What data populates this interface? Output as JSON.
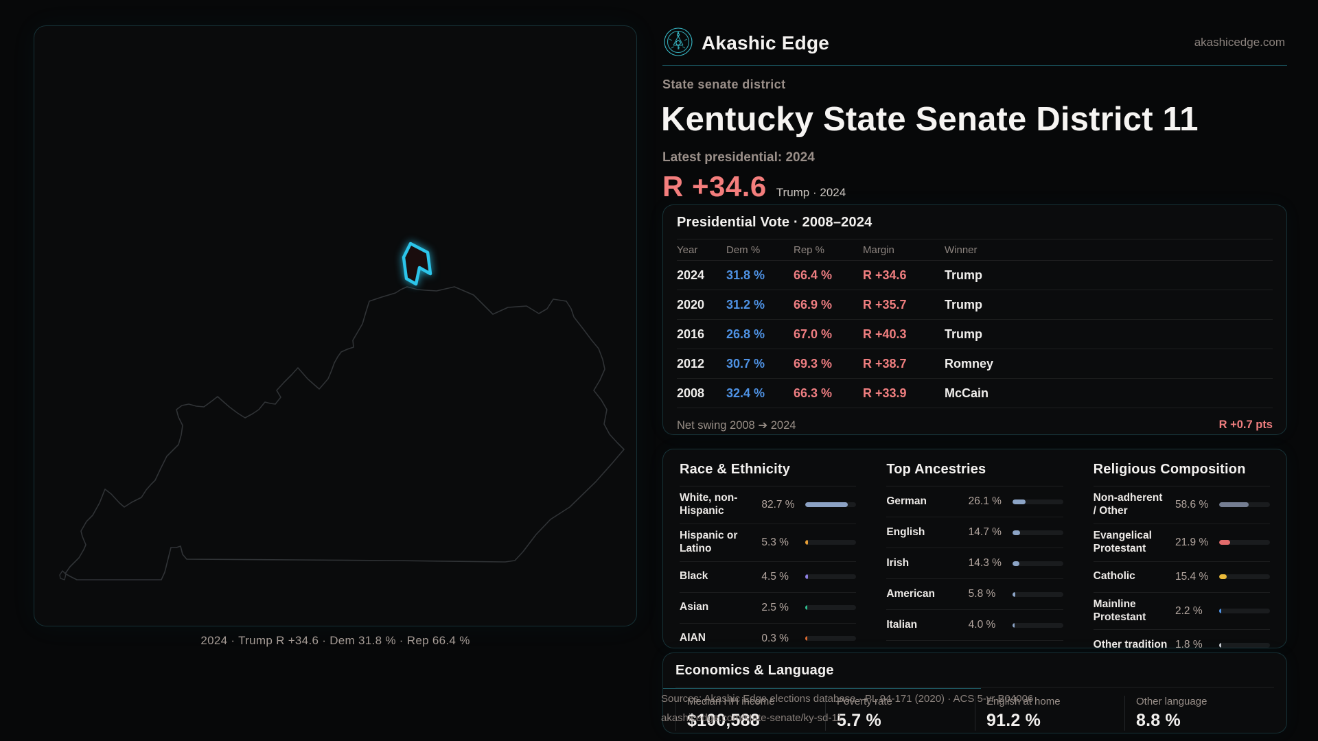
{
  "brand": {
    "name": "Akashic Edge",
    "site": "akashicedge.com"
  },
  "header": {
    "kicker": "State senate district",
    "title": "Kentucky State Senate District 11",
    "latest_label": "Latest presidential: 2024",
    "margin_big": "R +34.6",
    "margin_note": "Trump · 2024"
  },
  "map": {
    "caption": "2024 · Trump R +34.6 · Dem 31.8 % · Rep 66.4 %",
    "district_color": "#2cc5ea"
  },
  "presidential": {
    "title": "Presidential Vote · 2008–2024",
    "columns": [
      "Year",
      "Dem %",
      "Rep %",
      "Margin",
      "Winner"
    ],
    "rows": [
      {
        "year": "2024",
        "dem": "31.8 %",
        "rep": "66.4 %",
        "margin": "R +34.6",
        "winner": "Trump"
      },
      {
        "year": "2020",
        "dem": "31.2 %",
        "rep": "66.9 %",
        "margin": "R +35.7",
        "winner": "Trump"
      },
      {
        "year": "2016",
        "dem": "26.8 %",
        "rep": "67.0 %",
        "margin": "R +40.3",
        "winner": "Trump"
      },
      {
        "year": "2012",
        "dem": "30.7 %",
        "rep": "69.3 %",
        "margin": "R +38.7",
        "winner": "Romney"
      },
      {
        "year": "2008",
        "dem": "32.4 %",
        "rep": "66.3 %",
        "margin": "R +33.9",
        "winner": "McCain"
      }
    ],
    "net_swing_label": "Net swing 2008 ➔ 2024",
    "net_swing_value": "R +0.7 pts"
  },
  "demographics": {
    "race": {
      "title": "Race & Ethnicity",
      "rows": [
        {
          "label": "White, non-Hispanic",
          "value": "82.7 %",
          "pct": 82.7,
          "color": "#8ca2c4"
        },
        {
          "label": "Hispanic or Latino",
          "value": "5.3 %",
          "pct": 5.3,
          "color": "#e79f36"
        },
        {
          "label": "Black",
          "value": "4.5 %",
          "pct": 4.5,
          "color": "#8d7fe0"
        },
        {
          "label": "Asian",
          "value": "2.5 %",
          "pct": 2.5,
          "color": "#2fbe8f"
        },
        {
          "label": "AIAN",
          "value": "0.3 %",
          "pct": 0.3,
          "color": "#dd6a30"
        }
      ]
    },
    "ancestries": {
      "title": "Top Ancestries",
      "rows": [
        {
          "label": "German",
          "value": "26.1 %",
          "pct": 26.1,
          "color": "#8ca4c6"
        },
        {
          "label": "English",
          "value": "14.7 %",
          "pct": 14.7,
          "color": "#8ca4c6"
        },
        {
          "label": "Irish",
          "value": "14.3 %",
          "pct": 14.3,
          "color": "#8ca4c6"
        },
        {
          "label": "American",
          "value": "5.8 %",
          "pct": 5.8,
          "color": "#8ca4c6"
        },
        {
          "label": "Italian",
          "value": "4.0 %",
          "pct": 4.0,
          "color": "#8ca4c6"
        }
      ]
    },
    "religion": {
      "title": "Religious Composition",
      "rows": [
        {
          "label": "Non-adherent / Other",
          "value": "58.6 %",
          "pct": 58.6,
          "color": "#757e92"
        },
        {
          "label": "Evangelical Protestant",
          "value": "21.9 %",
          "pct": 21.9,
          "color": "#e26b6b"
        },
        {
          "label": "Catholic",
          "value": "15.4 %",
          "pct": 15.4,
          "color": "#eaba3a"
        },
        {
          "label": "Mainline Protestant",
          "value": "2.2 %",
          "pct": 2.2,
          "color": "#4f93e6"
        },
        {
          "label": "Other tradition",
          "value": "1.8 %",
          "pct": 1.8,
          "color": "#c7cad0"
        }
      ]
    }
  },
  "economics": {
    "title": "Economics & Language",
    "stats": [
      {
        "label": "Median HH income",
        "value": "$100,588"
      },
      {
        "label": "Poverty rate",
        "value": "5.7 %"
      },
      {
        "label": "English at home",
        "value": "91.2 %"
      },
      {
        "label": "Other language",
        "value": "8.8 %"
      }
    ]
  },
  "sources": {
    "line1": "Sources: Akashic Edge elections database · PL 94-171 (2020) · ACS 5-yr B04006",
    "line2": "akashicedge.com/state-senate/ky-sd-11"
  }
}
